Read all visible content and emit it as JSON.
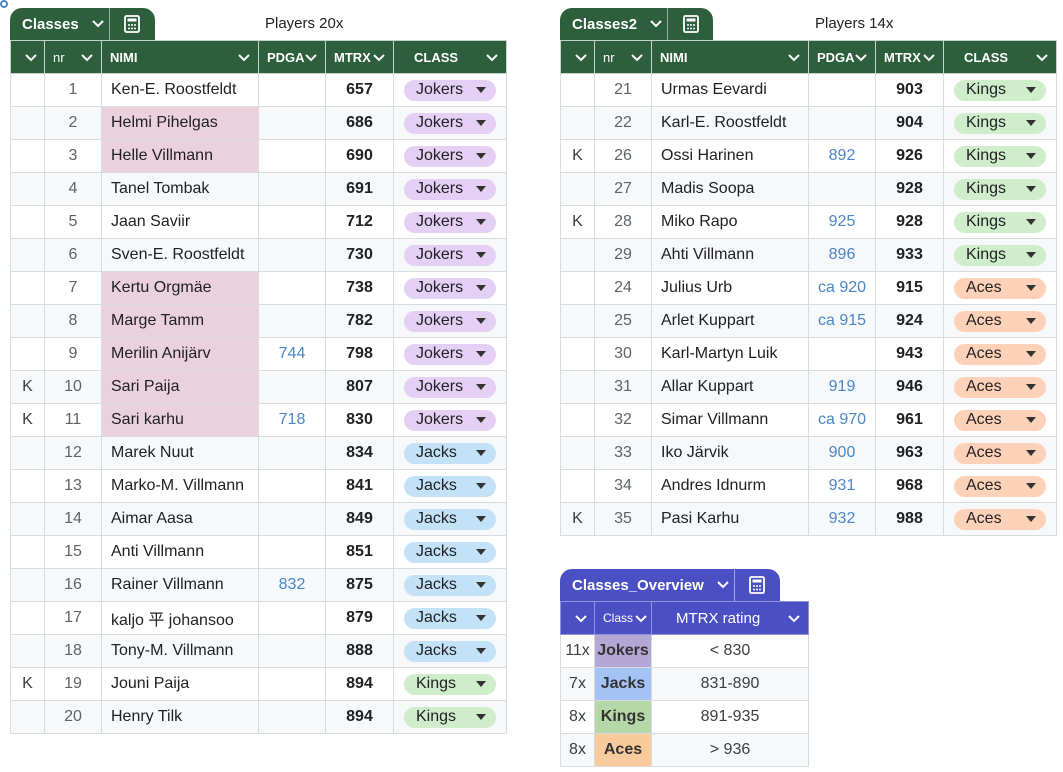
{
  "colors": {
    "header_green": "#2d5f3d",
    "header_blue": "#4a4fc4",
    "highlight_pink": "#ead1dc",
    "pdga_blue": "#4a86c8",
    "Jokers": "#e4cff5",
    "Jacks": "#c3e2f7",
    "Kings": "#cfedca",
    "Aces": "#fdd1b8",
    "ov_Jokers": "#b4a7d6",
    "ov_Jacks": "#a4c2f4",
    "ov_Kings": "#b6d7a8",
    "ov_Aces": "#f9cb9c"
  },
  "t1": {
    "tab_name": "Classes",
    "title": "Players 20x",
    "headers": {
      "nr": "nr",
      "name": "NIMI",
      "pdga": "PDGA",
      "mtrx": "MTRX",
      "cls": "CLASS"
    },
    "rows": [
      {
        "k": "",
        "nr": "1",
        "name": "Ken-E. Roostfeldt",
        "pdga": "",
        "mtrx": "657",
        "cls": "Jokers",
        "pink": false
      },
      {
        "k": "",
        "nr": "2",
        "name": "Helmi Pihelgas",
        "pdga": "",
        "mtrx": "686",
        "cls": "Jokers",
        "pink": true
      },
      {
        "k": "",
        "nr": "3",
        "name": "Helle Villmann",
        "pdga": "",
        "mtrx": "690",
        "cls": "Jokers",
        "pink": true
      },
      {
        "k": "",
        "nr": "4",
        "name": "Tanel Tombak",
        "pdga": "",
        "mtrx": "691",
        "cls": "Jokers",
        "pink": false
      },
      {
        "k": "",
        "nr": "5",
        "name": "Jaan Saviir",
        "pdga": "",
        "mtrx": "712",
        "cls": "Jokers",
        "pink": false
      },
      {
        "k": "",
        "nr": "6",
        "name": "Sven-E. Roostfeldt",
        "pdga": "",
        "mtrx": "730",
        "cls": "Jokers",
        "pink": false
      },
      {
        "k": "",
        "nr": "7",
        "name": "Kertu Orgmäe",
        "pdga": "",
        "mtrx": "738",
        "cls": "Jokers",
        "pink": true
      },
      {
        "k": "",
        "nr": "8",
        "name": "Marge Tamm",
        "pdga": "",
        "mtrx": "782",
        "cls": "Jokers",
        "pink": true
      },
      {
        "k": "",
        "nr": "9",
        "name": "Merilin Anijärv",
        "pdga": "744",
        "mtrx": "798",
        "cls": "Jokers",
        "pink": true
      },
      {
        "k": "K",
        "nr": "10",
        "name": "Sari Paija",
        "pdga": "",
        "mtrx": "807",
        "cls": "Jokers",
        "pink": true
      },
      {
        "k": "K",
        "nr": "11",
        "name": "Sari karhu",
        "pdga": "718",
        "mtrx": "830",
        "cls": "Jokers",
        "pink": true
      },
      {
        "k": "",
        "nr": "12",
        "name": "Marek Nuut",
        "pdga": "",
        "mtrx": "834",
        "cls": "Jacks",
        "pink": false
      },
      {
        "k": "",
        "nr": "13",
        "name": "Marko-M. Villmann",
        "pdga": "",
        "mtrx": "841",
        "cls": "Jacks",
        "pink": false
      },
      {
        "k": "",
        "nr": "14",
        "name": "Aimar Aasa",
        "pdga": "",
        "mtrx": "849",
        "cls": "Jacks",
        "pink": false
      },
      {
        "k": "",
        "nr": "15",
        "name": "Anti Villmann",
        "pdga": "",
        "mtrx": "851",
        "cls": "Jacks",
        "pink": false
      },
      {
        "k": "",
        "nr": "16",
        "name": "Rainer Villmann",
        "pdga": "832",
        "mtrx": "875",
        "cls": "Jacks",
        "pink": false
      },
      {
        "k": "",
        "nr": "17",
        "name": "kaljo 平 johansoo",
        "pdga": "",
        "mtrx": "879",
        "cls": "Jacks",
        "pink": false
      },
      {
        "k": "",
        "nr": "18",
        "name": "Tony-M. Villmann",
        "pdga": "",
        "mtrx": "888",
        "cls": "Jacks",
        "pink": false
      },
      {
        "k": "K",
        "nr": "19",
        "name": "Jouni Paija",
        "pdga": "",
        "mtrx": "894",
        "cls": "Kings",
        "pink": false
      },
      {
        "k": "",
        "nr": "20",
        "name": "Henry Tilk",
        "pdga": "",
        "mtrx": "894",
        "cls": "Kings",
        "pink": false
      }
    ]
  },
  "t2": {
    "tab_name": "Classes2",
    "title": "Players 14x",
    "headers": {
      "nr": "nr",
      "name": "NIMI",
      "pdga": "PDGA",
      "mtrx": "MTRX",
      "cls": "CLASS"
    },
    "rows": [
      {
        "k": "",
        "nr": "21",
        "name": "Urmas Eevardi",
        "pdga": "",
        "mtrx": "903",
        "cls": "Kings"
      },
      {
        "k": "",
        "nr": "22",
        "name": "Karl-E. Roostfeldt",
        "pdga": "",
        "mtrx": "904",
        "cls": "Kings"
      },
      {
        "k": "K",
        "nr": "26",
        "name": "Ossi Harinen",
        "pdga": "892",
        "mtrx": "926",
        "cls": "Kings"
      },
      {
        "k": "",
        "nr": "27",
        "name": "Madis Soopa",
        "pdga": "",
        "mtrx": "928",
        "cls": "Kings"
      },
      {
        "k": "K",
        "nr": "28",
        "name": "Miko Rapo",
        "pdga": "925",
        "mtrx": "928",
        "cls": "Kings"
      },
      {
        "k": "",
        "nr": "29",
        "name": "Ahti Villmann",
        "pdga": "896",
        "mtrx": "933",
        "cls": "Kings"
      },
      {
        "k": "",
        "nr": "24",
        "name": "Julius Urb",
        "pdga": "ca 920",
        "mtrx": "915",
        "cls": "Aces"
      },
      {
        "k": "",
        "nr": "25",
        "name": "Arlet Kuppart",
        "pdga": "ca 915",
        "mtrx": "924",
        "cls": "Aces"
      },
      {
        "k": "",
        "nr": "30",
        "name": "Karl-Martyn Luik",
        "pdga": "",
        "mtrx": "943",
        "cls": "Aces"
      },
      {
        "k": "",
        "nr": "31",
        "name": "Allar Kuppart",
        "pdga": "919",
        "mtrx": "946",
        "cls": "Aces"
      },
      {
        "k": "",
        "nr": "32",
        "name": "Simar Villmann",
        "pdga": "ca 970",
        "mtrx": "961",
        "cls": "Aces"
      },
      {
        "k": "",
        "nr": "33",
        "name": "Iko Järvik",
        "pdga": "900",
        "mtrx": "963",
        "cls": "Aces"
      },
      {
        "k": "",
        "nr": "34",
        "name": "Andres Idnurm",
        "pdga": "931",
        "mtrx": "968",
        "cls": "Aces"
      },
      {
        "k": "K",
        "nr": "35",
        "name": "Pasi Karhu",
        "pdga": "932",
        "mtrx": "988",
        "cls": "Aces"
      }
    ]
  },
  "overview": {
    "tab_name": "Classes_Overview",
    "headers": {
      "cls": "Class",
      "rating": "MTRX rating"
    },
    "rows": [
      {
        "count": "11x",
        "cls": "Jokers",
        "rating": "< 830"
      },
      {
        "count": "7x",
        "cls": "Jacks",
        "rating": "831-890"
      },
      {
        "count": "8x",
        "cls": "Kings",
        "rating": "891-935"
      },
      {
        "count": "8x",
        "cls": "Aces",
        "rating": "> 936"
      }
    ]
  }
}
